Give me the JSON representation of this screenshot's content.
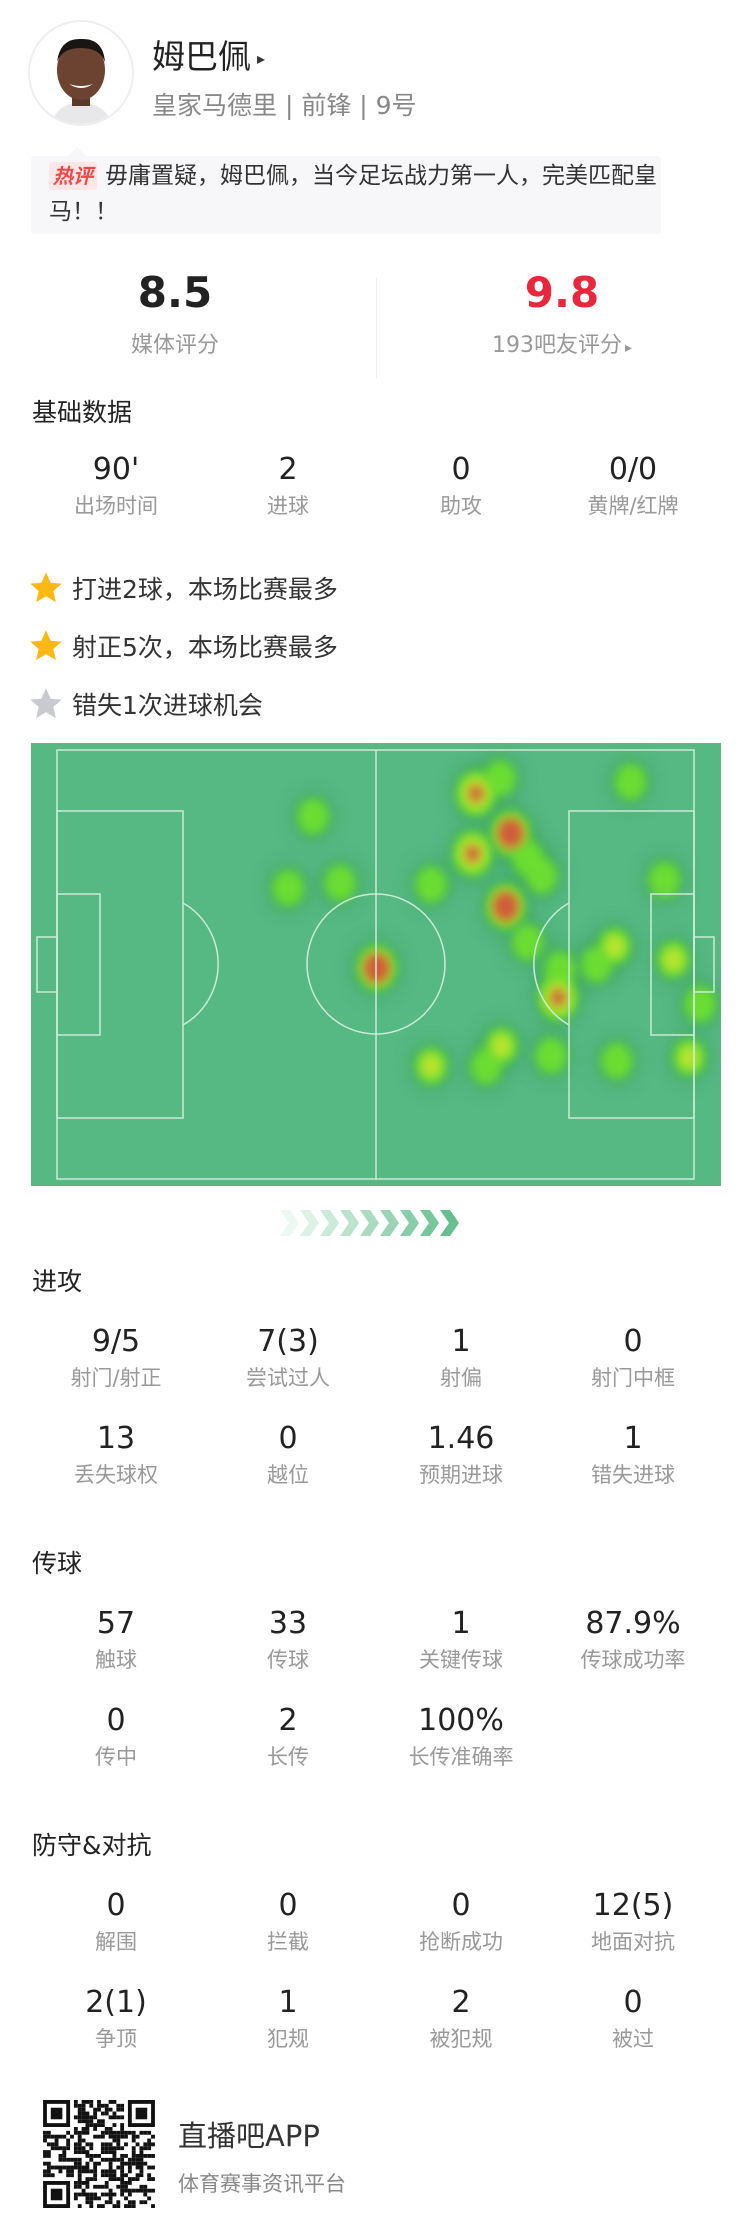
{
  "player": {
    "name": "姆巴佩",
    "arrow": "▸",
    "info": "皇家马德里 | 前锋 | 9号"
  },
  "comment": {
    "tag": "热评",
    "text": "毋庸置疑，姆巴佩，当今足坛战力第一人，完美匹配皇马！！"
  },
  "ratings": {
    "media": {
      "value": "8.5",
      "label": "媒体评分"
    },
    "fans": {
      "value": "9.8",
      "label": "193吧友评分",
      "arrow": "▸"
    }
  },
  "colors": {
    "fan_rating": "#e8263c",
    "pitch": "#56b882",
    "star_gold": "#fdb813",
    "star_gray": "#c8cad0"
  },
  "basic": {
    "title": "基础数据",
    "stats": [
      {
        "value": "90'",
        "label": "出场时间"
      },
      {
        "value": "2",
        "label": "进球"
      },
      {
        "value": "0",
        "label": "助攻"
      },
      {
        "value": "0/0",
        "label": "黄牌/红牌"
      }
    ]
  },
  "highlights": [
    {
      "icon": "star-gold",
      "text": "打进2球，本场比赛最多"
    },
    {
      "icon": "star-gold",
      "text": "射正5次，本场比赛最多"
    },
    {
      "icon": "star-gray",
      "text": "错失1次进球机会"
    }
  ],
  "attack": {
    "title": "进攻",
    "stats": [
      {
        "value": "9/5",
        "label": "射门/射正"
      },
      {
        "value": "7(3)",
        "label": "尝试过人"
      },
      {
        "value": "1",
        "label": "射偏"
      },
      {
        "value": "0",
        "label": "射门中框"
      },
      {
        "value": "13",
        "label": "丢失球权"
      },
      {
        "value": "0",
        "label": "越位"
      },
      {
        "value": "1.46",
        "label": "预期进球"
      },
      {
        "value": "1",
        "label": "错失进球"
      }
    ]
  },
  "passing": {
    "title": "传球",
    "stats": [
      {
        "value": "57",
        "label": "触球"
      },
      {
        "value": "33",
        "label": "传球"
      },
      {
        "value": "1",
        "label": "关键传球"
      },
      {
        "value": "87.9%",
        "label": "传球成功率"
      },
      {
        "value": "0",
        "label": "传中"
      },
      {
        "value": "2",
        "label": "长传"
      },
      {
        "value": "100%",
        "label": "长传准确率"
      }
    ]
  },
  "defense": {
    "title": "防守&对抗",
    "stats": [
      {
        "value": "0",
        "label": "解围"
      },
      {
        "value": "0",
        "label": "拦截"
      },
      {
        "value": "0",
        "label": "抢断成功"
      },
      {
        "value": "12(5)",
        "label": "地面对抗"
      },
      {
        "value": "2(1)",
        "label": "争顶"
      },
      {
        "value": "1",
        "label": "犯规"
      },
      {
        "value": "2",
        "label": "被犯规"
      },
      {
        "value": "0",
        "label": "被过"
      }
    ]
  },
  "footer": {
    "app_name": "直播吧APP",
    "tagline": "体育赛事资讯平台"
  }
}
